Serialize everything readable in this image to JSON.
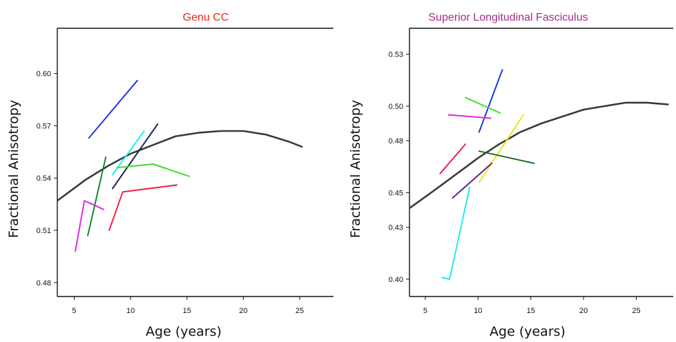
{
  "chart_data": [
    {
      "type": "line",
      "title": "Genu CC",
      "title_color": "#e8261e",
      "xlabel": "Age (years)",
      "ylabel": "Fractional Anisotropy",
      "xlim": [
        3.5,
        28
      ],
      "ylim": [
        0.472,
        0.626
      ],
      "xticks": [
        5,
        10,
        15,
        20,
        25
      ],
      "xtick_labels": [
        "5",
        "10",
        "15",
        "20",
        "25"
      ],
      "yticks": [
        0.48,
        0.51,
        0.54,
        0.57,
        0.6
      ],
      "ytick_labels": [
        "0.48",
        "0.51",
        "0.54",
        "0.57",
        "0.60"
      ],
      "grid": false,
      "series": [
        {
          "color": "#3a3a3a",
          "width": 2.6,
          "kind": "trend",
          "points": [
            [
              3.5,
              0.527
            ],
            [
              6,
              0.539
            ],
            [
              8,
              0.547
            ],
            [
              10,
              0.554
            ],
            [
              12,
              0.559
            ],
            [
              14,
              0.564
            ],
            [
              16,
              0.566
            ],
            [
              18,
              0.567
            ],
            [
              20,
              0.567
            ],
            [
              22,
              0.565
            ],
            [
              24,
              0.561
            ],
            [
              25.2,
              0.558
            ]
          ]
        },
        {
          "color": "#1a35e8",
          "width": 2,
          "points": [
            [
              6.3,
              0.563
            ],
            [
              10.6,
              0.596
            ]
          ]
        },
        {
          "color": "#1eecec",
          "width": 2,
          "points": [
            [
              8.4,
              0.542
            ],
            [
              11.2,
              0.567
            ]
          ]
        },
        {
          "color": "#1b1f5a",
          "width": 2,
          "points": [
            [
              8.4,
              0.534
            ],
            [
              12.4,
              0.571
            ]
          ]
        },
        {
          "color": "#3fdc2c",
          "width": 2,
          "points": [
            [
              8.8,
              0.546
            ],
            [
              12,
              0.548
            ],
            [
              15.2,
              0.541
            ]
          ]
        },
        {
          "color": "#0e8a2a",
          "width": 2,
          "points": [
            [
              6.2,
              0.507
            ],
            [
              7.8,
              0.552
            ]
          ]
        },
        {
          "color": "#f21f4c",
          "width": 2,
          "points": [
            [
              8.1,
              0.51
            ],
            [
              9.3,
              0.532
            ],
            [
              14.1,
              0.536
            ]
          ]
        },
        {
          "color": "#e028e6",
          "width": 2,
          "points": [
            [
              5.1,
              0.498
            ],
            [
              5.9,
              0.527
            ],
            [
              7.6,
              0.522
            ]
          ]
        }
      ]
    },
    {
      "type": "line",
      "title": "Superior Longitudinal Fasciculus",
      "title_color": "#a72c8a",
      "xlabel": "Age (years)",
      "ylabel": "Fractional Anisotropy",
      "xlim": [
        3.5,
        28.5
      ],
      "ylim": [
        0.39,
        0.545
      ],
      "xticks": [
        5,
        10,
        15,
        20,
        25
      ],
      "xtick_labels": [
        "5",
        "10",
        "15",
        "20",
        "25"
      ],
      "yticks": [
        0.4,
        0.43,
        0.45,
        0.48,
        0.5,
        0.53
      ],
      "ytick_labels": [
        "0.40",
        "0.43",
        "0.45",
        "0.48",
        "0.50",
        "0.53"
      ],
      "grid": false,
      "series": [
        {
          "color": "#3a3a3a",
          "width": 2.6,
          "kind": "trend",
          "points": [
            [
              3.5,
              0.441
            ],
            [
              6,
              0.452
            ],
            [
              8,
              0.461
            ],
            [
              10,
              0.47
            ],
            [
              12,
              0.478
            ],
            [
              14,
              0.485
            ],
            [
              16,
              0.49
            ],
            [
              18,
              0.494
            ],
            [
              20,
              0.498
            ],
            [
              22,
              0.5
            ],
            [
              24,
              0.502
            ],
            [
              26,
              0.502
            ],
            [
              28,
              0.501
            ]
          ]
        },
        {
          "color": "#1a35e8",
          "width": 2,
          "points": [
            [
              10.1,
              0.485
            ],
            [
              12.3,
              0.521
            ]
          ]
        },
        {
          "color": "#3fdc2c",
          "width": 2,
          "points": [
            [
              8.8,
              0.505
            ],
            [
              12.1,
              0.496
            ]
          ]
        },
        {
          "color": "#e028e6",
          "width": 2,
          "points": [
            [
              7.2,
              0.495
            ],
            [
              11.2,
              0.493
            ]
          ]
        },
        {
          "color": "#f21f4c",
          "width": 2,
          "points": [
            [
              6.4,
              0.461
            ],
            [
              8.8,
              0.478
            ]
          ]
        },
        {
          "color": "#e8e61a",
          "width": 2,
          "points": [
            [
              10.1,
              0.456
            ],
            [
              14.3,
              0.495
            ]
          ]
        },
        {
          "color": "#1f6b22",
          "width": 2,
          "points": [
            [
              10.1,
              0.474
            ],
            [
              15.3,
              0.467
            ]
          ]
        },
        {
          "color": "#6b1f8a",
          "width": 2,
          "points": [
            [
              7.6,
              0.447
            ],
            [
              11.3,
              0.467
            ]
          ]
        },
        {
          "color": "#1eecec",
          "width": 2,
          "points": [
            [
              6.6,
              0.401
            ],
            [
              7.3,
              0.4
            ],
            [
              9.2,
              0.453
            ]
          ]
        }
      ]
    }
  ]
}
